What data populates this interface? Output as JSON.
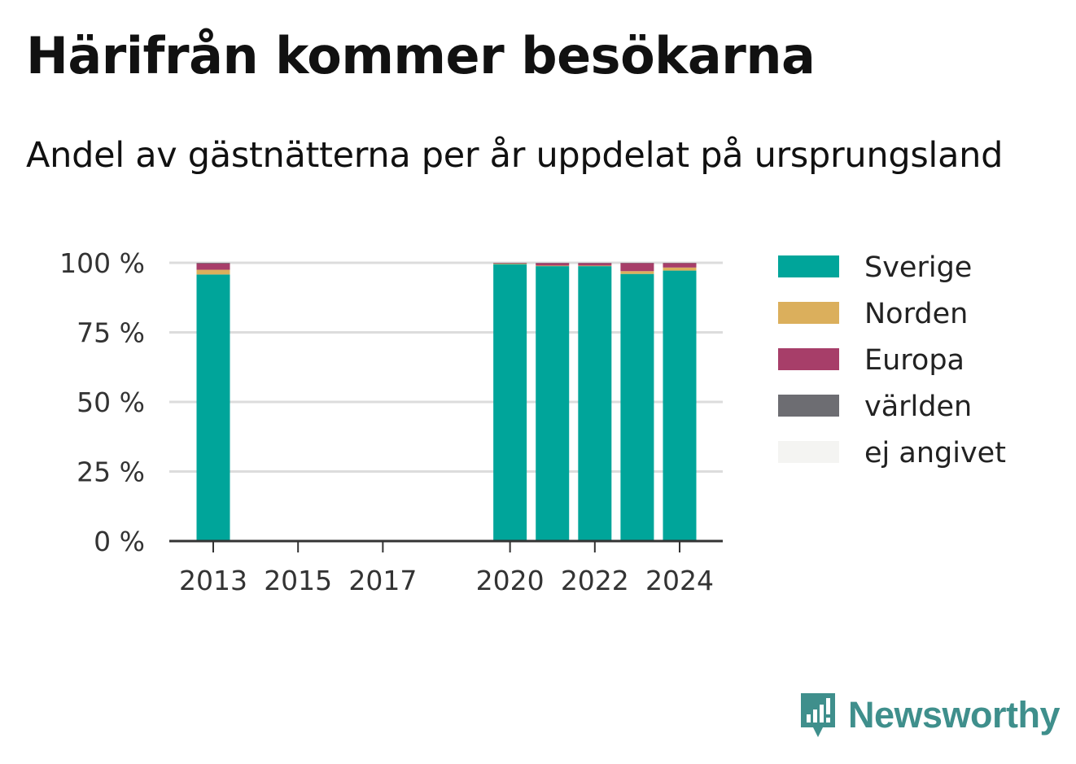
{
  "chart_data": {
    "type": "bar",
    "stacked": true,
    "title": "Härifrån kommer besökarna",
    "subtitle": "Andel av gästnätterna per år uppdelat på ursprungsland",
    "x": [
      2013,
      2014,
      2015,
      2016,
      2017,
      2018,
      2019,
      2020,
      2021,
      2022,
      2023,
      2024
    ],
    "xticks": [
      "2013",
      "2015",
      "2017",
      "2020",
      "2022",
      "2024"
    ],
    "yticks": [
      "0 %",
      "25 %",
      "50 %",
      "75 %",
      "100 %"
    ],
    "ylim": [
      0,
      100
    ],
    "grid": true,
    "legend_position": "right",
    "series": [
      {
        "name": "Sverige",
        "color": "#00a59a",
        "values": [
          95.8,
          null,
          null,
          null,
          null,
          null,
          null,
          99.5,
          98.8,
          98.8,
          96.0,
          97.2
        ]
      },
      {
        "name": "Norden",
        "color": "#dbaf5c",
        "values": [
          1.7,
          null,
          null,
          null,
          null,
          null,
          null,
          0.2,
          0.2,
          0.2,
          1.0,
          1.1
        ]
      },
      {
        "name": "Europa",
        "color": "#a73e69",
        "values": [
          2.3,
          null,
          null,
          null,
          null,
          null,
          null,
          0.2,
          0.9,
          0.9,
          2.9,
          1.6
        ]
      },
      {
        "name": "världen",
        "color": "#6d6d72",
        "values": [
          0.2,
          null,
          null,
          null,
          null,
          null,
          null,
          0.1,
          0.1,
          0.1,
          0.1,
          0.1
        ]
      },
      {
        "name": "ej angivet",
        "color": "#f4f4f2",
        "values": [
          0,
          null,
          null,
          null,
          null,
          null,
          null,
          0,
          0,
          0,
          0,
          0
        ]
      }
    ]
  },
  "brand": {
    "name": "Newsworthy",
    "icon": "newsworthy-logo-icon",
    "color": "#3f8f8c"
  }
}
